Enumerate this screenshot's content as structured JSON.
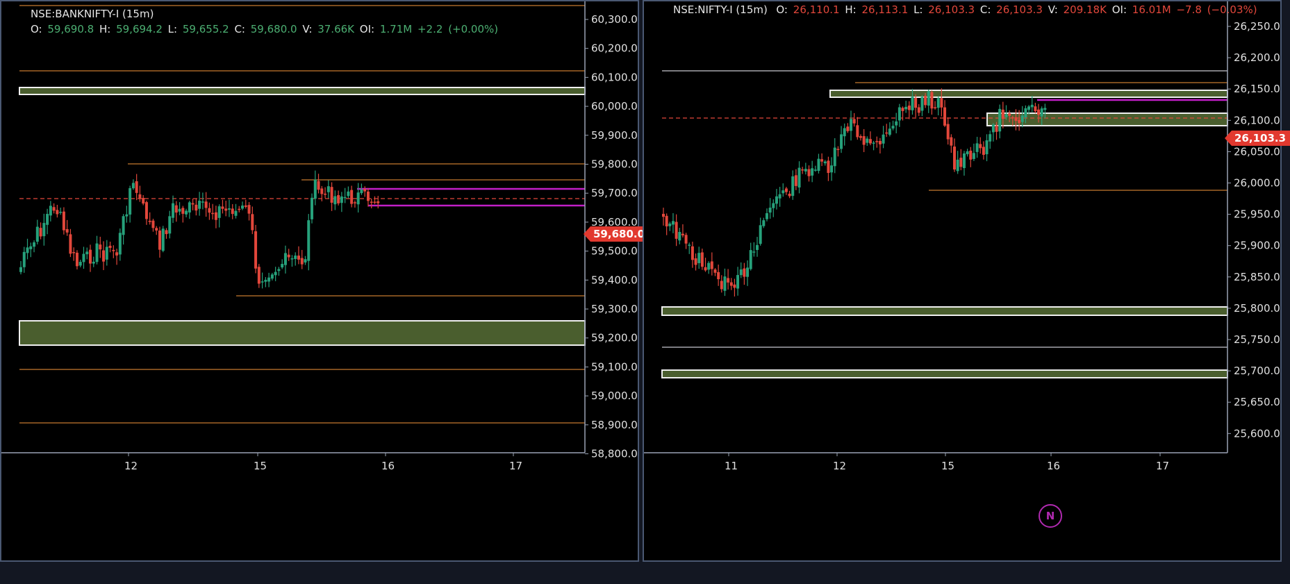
{
  "charts": [
    {
      "symbol": "NSE:BANKNIFTY-I (15m)",
      "ohlc": {
        "o_label": "O:",
        "o": "59,690.8",
        "h_label": "H:",
        "h": "59,694.2",
        "l_label": "L:",
        "l": "59,655.2",
        "c_label": "C:",
        "c": "59,680.0",
        "v_label": "V:",
        "v": "37.66K",
        "oi_label": "OI:",
        "oi": "1.71M",
        "chg": "+2.2",
        "chg_pct": "(+0.00%)",
        "direction": "up"
      },
      "last_price": "59,680.0",
      "y_ticks": [
        "60,300.0",
        "60,200.0",
        "60,100.0",
        "60,000.0",
        "59,900.0",
        "59,800.0",
        "59,700.0",
        "59,600.0",
        "59,500.0",
        "59,400.0",
        "59,300.0",
        "59,200.0",
        "59,100.0",
        "59,000.0",
        "58,900.0",
        "58,800.0"
      ],
      "x_ticks": [
        "12",
        "15",
        "16",
        "17"
      ]
    },
    {
      "symbol": "NSE:NIFTY-I (15m)",
      "ohlc": {
        "o_label": "O:",
        "o": "26,110.1",
        "h_label": "H:",
        "h": "26,113.1",
        "l_label": "L:",
        "l": "26,103.3",
        "c_label": "C:",
        "c": "26,103.3",
        "v_label": "V:",
        "v": "209.18K",
        "oi_label": "OI:",
        "oi": "16.01M",
        "chg": "−7.8",
        "chg_pct": "(−0.03%)",
        "direction": "down"
      },
      "last_price": "26,103.3",
      "y_ticks": [
        "26,250.0",
        "26,200.0",
        "26,150.0",
        "26,100.0",
        "26,050.0",
        "26,000.0",
        "25,950.0",
        "25,900.0",
        "25,850.0",
        "25,800.0",
        "25,750.0",
        "25,700.0",
        "25,650.0",
        "25,600.0"
      ],
      "x_ticks": [
        "11",
        "12",
        "15",
        "16",
        "17"
      ],
      "logo": "N"
    }
  ],
  "colors": {
    "up": "#26a17b",
    "down": "#e2473b",
    "level": "#c7792f",
    "zone": "#4a5e2e",
    "magenta": "#c21fc7",
    "axis": "#9aa3b5"
  }
}
